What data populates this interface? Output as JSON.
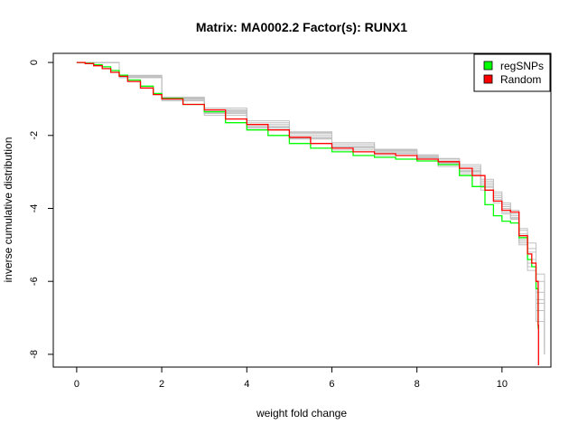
{
  "chart_data": {
    "type": "line",
    "title": "Matrix: MA0002.2 Factor(s): RUNX1",
    "xlabel": "weight fold change",
    "ylabel": "inverse cumulative distribution",
    "xlim": [
      -0.55,
      11.15
    ],
    "ylim": [
      -8.35,
      0.25
    ],
    "xticks": [
      0,
      2,
      4,
      6,
      8,
      10
    ],
    "yticks": [
      0,
      -2,
      -4,
      -6,
      -8
    ],
    "grid": false,
    "legend": {
      "position": "top-right",
      "entries": [
        {
          "label": "regSNPs",
          "color": "#00ff00"
        },
        {
          "label": "Random",
          "color": "#ff0000"
        }
      ]
    },
    "series": [
      {
        "name": "regSNPs",
        "color": "#00ff00",
        "x": [
          0.0,
          0.2,
          0.4,
          0.6,
          0.8,
          1.0,
          1.2,
          1.5,
          1.8,
          2.0,
          2.5,
          3.0,
          3.5,
          4.0,
          4.5,
          5.0,
          5.5,
          6.0,
          6.5,
          7.0,
          7.5,
          8.0,
          8.5,
          9.0,
          9.3,
          9.6,
          9.8,
          10.0,
          10.2,
          10.4,
          10.6,
          10.7,
          10.8,
          10.85
        ],
        "y": [
          0.0,
          -0.02,
          -0.06,
          -0.12,
          -0.22,
          -0.35,
          -0.48,
          -0.65,
          -0.85,
          -0.98,
          -1.15,
          -1.35,
          -1.65,
          -1.85,
          -2.0,
          -2.22,
          -2.35,
          -2.45,
          -2.55,
          -2.6,
          -2.65,
          -2.7,
          -2.8,
          -3.1,
          -3.4,
          -3.9,
          -4.2,
          -4.35,
          -4.4,
          -4.8,
          -5.4,
          -5.6,
          -6.2,
          -7.3
        ]
      },
      {
        "name": "Random",
        "color": "#ff0000",
        "x": [
          0.0,
          0.2,
          0.4,
          0.6,
          0.8,
          1.0,
          1.2,
          1.5,
          1.8,
          2.0,
          2.5,
          3.0,
          3.5,
          4.0,
          4.5,
          5.0,
          5.5,
          6.0,
          6.5,
          7.0,
          7.5,
          8.0,
          8.5,
          9.0,
          9.3,
          9.6,
          9.8,
          10.0,
          10.2,
          10.4,
          10.6,
          10.7,
          10.8,
          10.85,
          10.86
        ],
        "y": [
          0.0,
          -0.03,
          -0.09,
          -0.17,
          -0.27,
          -0.38,
          -0.52,
          -0.7,
          -0.88,
          -1.0,
          -1.15,
          -1.3,
          -1.55,
          -1.7,
          -1.85,
          -2.05,
          -2.22,
          -2.35,
          -2.45,
          -2.5,
          -2.55,
          -2.65,
          -2.72,
          -2.9,
          -3.1,
          -3.5,
          -3.8,
          -4.05,
          -4.1,
          -4.75,
          -5.25,
          -5.5,
          -6.0,
          -7.2,
          -8.3
        ]
      }
    ],
    "background_series": [
      {
        "color": "#c0c0c0",
        "x": [
          0,
          1,
          2,
          3,
          4,
          5,
          6,
          7,
          8,
          8.5,
          9.0,
          9.5,
          9.8,
          10.0,
          10.2,
          10.4,
          10.6,
          10.8,
          11.0
        ],
        "y": [
          0,
          -0.4,
          -1.0,
          -1.35,
          -1.8,
          -2.0,
          -2.3,
          -2.45,
          -2.6,
          -2.75,
          -2.95,
          -3.35,
          -3.7,
          -4.0,
          -4.2,
          -4.85,
          -5.4,
          -6.6,
          -7.9
        ]
      },
      {
        "color": "#c0c0c0",
        "x": [
          0,
          1,
          2,
          3,
          4,
          5,
          6,
          7,
          8,
          8.5,
          9.0,
          9.5,
          9.8,
          10.0,
          10.2,
          10.4,
          10.6,
          10.8,
          11.0
        ],
        "y": [
          0,
          -0.35,
          -0.95,
          -1.25,
          -1.6,
          -1.9,
          -2.2,
          -2.4,
          -2.55,
          -2.65,
          -2.85,
          -3.25,
          -3.6,
          -3.9,
          -4.1,
          -4.7,
          -5.1,
          -6.0,
          -8.0
        ]
      },
      {
        "color": "#c0c0c0",
        "x": [
          0,
          1,
          2,
          3,
          4,
          5,
          6,
          7,
          8,
          8.5,
          9.0,
          9.5,
          9.8,
          10.0,
          10.2,
          10.4,
          10.6,
          10.8,
          11.0
        ],
        "y": [
          0,
          -0.42,
          -1.05,
          -1.45,
          -1.85,
          -2.1,
          -2.4,
          -2.55,
          -2.7,
          -2.85,
          -3.05,
          -3.5,
          -3.85,
          -4.15,
          -4.3,
          -5.0,
          -5.7,
          -6.8,
          -8.0
        ]
      },
      {
        "color": "#c0c0c0",
        "x": [
          0,
          1,
          2,
          3,
          4,
          5,
          6,
          7,
          8,
          8.5,
          9.0,
          9.5,
          9.8,
          10.0,
          10.2,
          10.4,
          10.6,
          10.8,
          11.0
        ],
        "y": [
          0,
          -0.37,
          -0.98,
          -1.3,
          -1.7,
          -1.95,
          -2.25,
          -2.42,
          -2.58,
          -2.7,
          -2.9,
          -3.3,
          -3.65,
          -3.95,
          -4.15,
          -4.6,
          -5.2,
          -6.3,
          -8.0
        ]
      },
      {
        "color": "#c0c0c0",
        "x": [
          0,
          1,
          2,
          3,
          4,
          5,
          6,
          7,
          8,
          8.5,
          9.0,
          9.5,
          9.8,
          10.0,
          10.2,
          10.4,
          10.6,
          10.8,
          11.0
        ],
        "y": [
          0,
          -0.4,
          -1.02,
          -1.4,
          -1.75,
          -2.05,
          -2.35,
          -2.5,
          -2.65,
          -2.8,
          -3.0,
          -3.4,
          -3.75,
          -4.05,
          -4.25,
          -4.9,
          -5.5,
          -6.5,
          -7.95
        ]
      },
      {
        "color": "#c0c0c0",
        "x": [
          0,
          1,
          2,
          3,
          4,
          5,
          6,
          7,
          8,
          8.5,
          9.0,
          9.5,
          9.8,
          10.0,
          10.2,
          10.4,
          10.6,
          10.8,
          11.0
        ],
        "y": [
          0,
          -0.38,
          -0.97,
          -1.32,
          -1.65,
          -1.92,
          -2.2,
          -2.38,
          -2.53,
          -2.63,
          -2.8,
          -3.2,
          -3.55,
          -3.85,
          -4.05,
          -4.55,
          -4.95,
          -5.8,
          -7.8
        ]
      },
      {
        "color": "#c0c0c0",
        "x": [
          0,
          1,
          2,
          3,
          4,
          5,
          6,
          7,
          8,
          8.5,
          9.0,
          9.5,
          9.8,
          10.0,
          10.2,
          10.4,
          10.6,
          10.8,
          11.0
        ],
        "y": [
          0,
          -0.41,
          -1.0,
          -1.38,
          -1.78,
          -2.08,
          -2.32,
          -2.48,
          -2.62,
          -2.77,
          -2.98,
          -3.42,
          -3.8,
          -4.1,
          -4.28,
          -4.95,
          -5.6,
          -7.1,
          -8.0
        ]
      }
    ]
  }
}
